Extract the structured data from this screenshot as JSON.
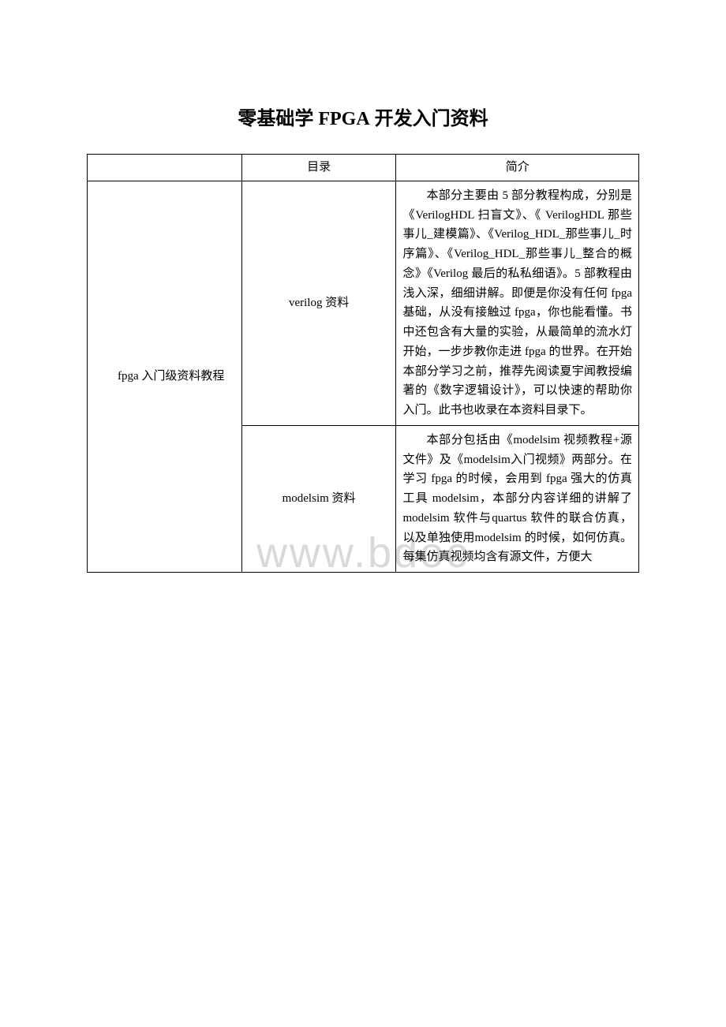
{
  "title_prefix": "零基础学 ",
  "title_en": "FPGA",
  "title_suffix": " 开发入门资料",
  "watermark": "www.bdoc",
  "header": {
    "col1": "",
    "col2": "目录",
    "col3": "简介"
  },
  "rows": [
    {
      "category": "fpga 入门级资料教程",
      "subcategory": "verilog 资料",
      "description": "本部分主要由 5 部分教程构成，分别是《VerilogHDL 扫盲文》、《 VerilogHDL 那些事儿_建模篇》、《Verilog_HDL_那些事儿_时序篇》、《Verilog_HDL_那些事儿_整合的概念》《Verilog 最后的私私细语》。5 部教程由浅入深，细细讲解。即便是你没有任何 fpga 基础，从没有接触过 fpga，你也能看懂。书中还包含有大量的实验，从最简单的流水灯开始，一步步教你走进 fpga 的世界。在开始本部分学习之前，推荐先阅读夏宇闻教授编著的《数字逻辑设计》，可以快速的帮助你入门。此书也收录在本资料目录下。"
    },
    {
      "subcategory": "modelsim 资料",
      "description": "本部分包括由《modelsim 视频教程+源文件》及《modelsim入门视频》两部分。在学习 fpga 的时候，会用到 fpga 强大的仿真工具 modelsim，本部分内容详细的讲解了modelsim 软件与quartus 软件的联合仿真，以及单独使用modelsim 的时候，如何仿真。每集仿真视频均含有源文件，方便大"
    }
  ]
}
